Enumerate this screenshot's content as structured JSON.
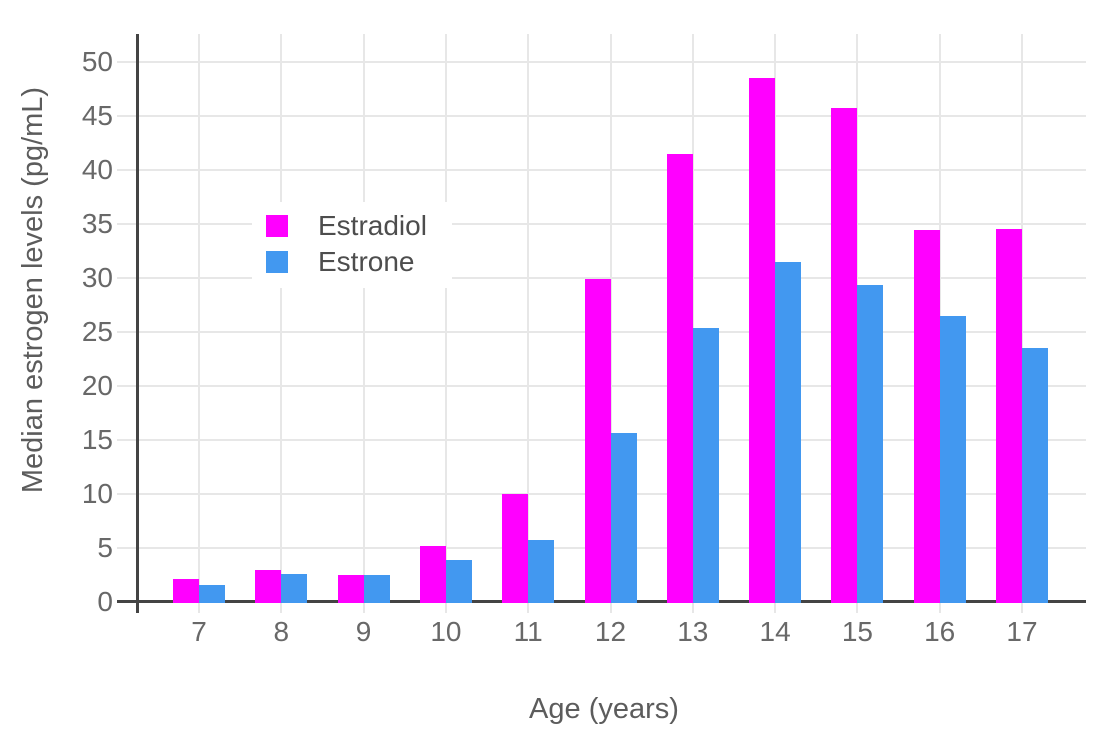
{
  "chart_data": {
    "type": "bar",
    "xlabel": "Age (years)",
    "ylabel": "Median estrogen levels (pg/mL)",
    "categories": [
      "7",
      "8",
      "9",
      "10",
      "11",
      "12",
      "13",
      "14",
      "15",
      "16",
      "17"
    ],
    "series": [
      {
        "name": "Estradiol",
        "color": "#FF00FF",
        "values": [
          2.2,
          3.1,
          2.6,
          5.3,
          10.1,
          30.0,
          41.6,
          48.6,
          45.8,
          34.5,
          34.6
        ]
      },
      {
        "name": "Estrone",
        "color": "#4298F0",
        "values": [
          1.7,
          2.7,
          2.6,
          4.0,
          5.8,
          15.7,
          25.5,
          31.6,
          29.4,
          26.6,
          23.6
        ]
      }
    ],
    "ylim": [
      0,
      50
    ],
    "ytick_step": 5,
    "grid": true,
    "legend_position": "inside-upper-left",
    "colors": {
      "axis": "#444444",
      "grid": "#E7E7E7",
      "tick_label": "#686868",
      "axis_title": "#5c5c5c",
      "legend_text": "#4d4d4d",
      "background": "#ffffff"
    }
  }
}
